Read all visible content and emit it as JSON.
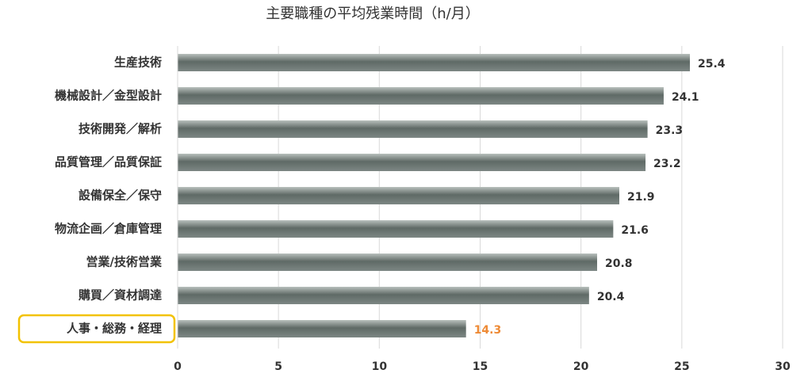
{
  "chart_data": {
    "type": "bar",
    "orientation": "horizontal",
    "title": "主要職種の平均残業時間（h/月）",
    "categories": [
      "生産技術",
      "機械設計／金型設計",
      "技術開発／解析",
      "品質管理／品質保証",
      "設備保全／保守",
      "物流企画／倉庫管理",
      "営業/技術営業",
      "購買／資材調達",
      "人事・総務・経理"
    ],
    "values": [
      25.4,
      24.1,
      23.3,
      23.2,
      21.9,
      21.6,
      20.8,
      20.4,
      14.3
    ],
    "color": "#6b7672",
    "value_label_colors": [
      "#333333",
      "#333333",
      "#333333",
      "#333333",
      "#333333",
      "#333333",
      "#333333",
      "#333333",
      "#ee8a35"
    ],
    "highlight": {
      "index": 8,
      "color": "#f2c200"
    },
    "xlim": [
      0,
      30
    ],
    "xticks": [
      0,
      5,
      10,
      15,
      20,
      25,
      30
    ],
    "grid": true
  }
}
